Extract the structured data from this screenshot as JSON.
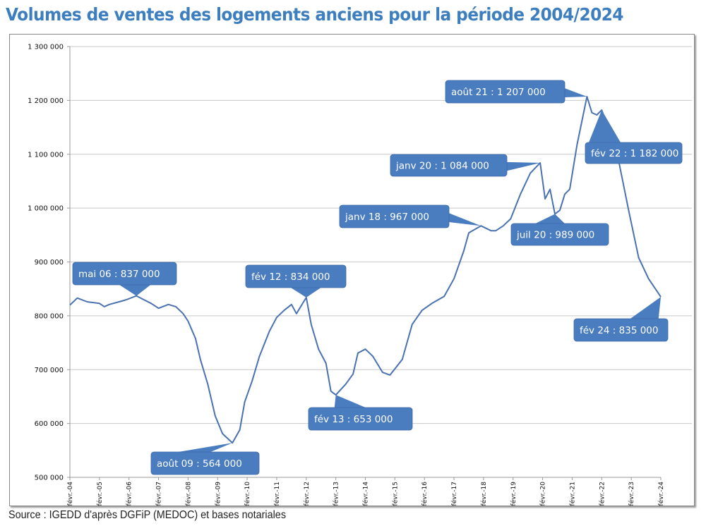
{
  "title": "Volumes de ventes des logements anciens pour la période 2004/2024",
  "source": "Source : IGEDD d'après DGFiP (MEDOC) et bases notariales",
  "colors": {
    "line": "#4a72b0",
    "callout": "#4a7cc0",
    "title": "#3d7ebf",
    "grid": "#c8c8c8"
  },
  "chart_data": {
    "type": "line",
    "title": "Volumes de ventes des logements anciens pour la période 2004/2024",
    "xlabel": "",
    "ylabel": "",
    "ylim": [
      500000,
      1300000
    ],
    "xlim": [
      "2004-02",
      "2024-02"
    ],
    "grid": true,
    "yticks": [
      "500 000",
      "600 000",
      "700 000",
      "800 000",
      "900 000",
      "1 000 000",
      "1 100 000",
      "1 200 000",
      "1 300 000"
    ],
    "xticks": [
      "févr.-04",
      "févr.-05",
      "févr.-06",
      "févr.-07",
      "févr.-08",
      "févr.-09",
      "févr.-10",
      "févr.-11",
      "févr.-12",
      "févr.-13",
      "févr.-14",
      "févr.-15",
      "févr.-16",
      "févr.-17",
      "févr.-18",
      "févr.-19",
      "févr.-20",
      "févr.-21",
      "févr.-22",
      "févr.-23",
      "févr.-24"
    ],
    "x": [
      "2004-02",
      "2004-05",
      "2004-09",
      "2005-02",
      "2005-04",
      "2005-06",
      "2005-10",
      "2006-01",
      "2006-05",
      "2006-08",
      "2006-11",
      "2007-02",
      "2007-06",
      "2007-09",
      "2007-12",
      "2008-02",
      "2008-05",
      "2008-07",
      "2008-10",
      "2009-01",
      "2009-04",
      "2009-08",
      "2009-11",
      "2010-01",
      "2010-04",
      "2010-07",
      "2010-11",
      "2011-02",
      "2011-05",
      "2011-08",
      "2011-10",
      "2012-02",
      "2012-04",
      "2012-07",
      "2012-10",
      "2012-12",
      "2013-02",
      "2013-06",
      "2013-09",
      "2013-11",
      "2014-02",
      "2014-05",
      "2014-09",
      "2014-12",
      "2015-05",
      "2015-09",
      "2016-01",
      "2016-05",
      "2016-10",
      "2017-02",
      "2017-06",
      "2017-08",
      "2018-01",
      "2018-05",
      "2018-07",
      "2018-10",
      "2019-01",
      "2019-05",
      "2019-09",
      "2020-01",
      "2020-03",
      "2020-05",
      "2020-07",
      "2020-09",
      "2020-11",
      "2021-01",
      "2021-04",
      "2021-08",
      "2021-10",
      "2021-12",
      "2022-02",
      "2022-05",
      "2022-09",
      "2023-01",
      "2023-05",
      "2023-09",
      "2024-02"
    ],
    "series": [
      {
        "values": [
          820000,
          833000,
          826000,
          823000,
          817000,
          821000,
          826000,
          830000,
          837000,
          830000,
          823000,
          814000,
          821000,
          817000,
          804000,
          790000,
          758000,
          719000,
          673000,
          614000,
          581000,
          564000,
          588000,
          640000,
          679000,
          725000,
          771000,
          797000,
          810000,
          821000,
          804000,
          834000,
          784000,
          738000,
          712000,
          660000,
          653000,
          673000,
          692000,
          731000,
          738000,
          725000,
          695000,
          690000,
          719000,
          784000,
          810000,
          823000,
          836000,
          869000,
          921000,
          954000,
          967000,
          958000,
          958000,
          967000,
          980000,
          1026000,
          1065000,
          1084000,
          1017000,
          1035000,
          989000,
          996000,
          1026000,
          1035000,
          1118000,
          1207000,
          1177000,
          1173000,
          1182000,
          1144000,
          1085000,
          994000,
          908000,
          869000,
          835000
        ]
      }
    ],
    "annotations": [
      {
        "label": "mai 06 : 837 000",
        "x": "2006-05",
        "y": 837000
      },
      {
        "label": "août 09 : 564 000",
        "x": "2009-08",
        "y": 564000
      },
      {
        "label": "fév 12 : 834 000",
        "x": "2012-02",
        "y": 834000
      },
      {
        "label": "fév 13 : 653 000",
        "x": "2013-02",
        "y": 653000
      },
      {
        "label": "janv  18 : 967 000",
        "x": "2018-01",
        "y": 967000
      },
      {
        "label": "janv 20 : 1 084 000",
        "x": "2020-01",
        "y": 1084000
      },
      {
        "label": "juil 20 : 989 000",
        "x": "2020-07",
        "y": 989000
      },
      {
        "label": "août 21 : 1 207 000",
        "x": "2021-08",
        "y": 1207000
      },
      {
        "label": "fév 22 : 1 182 000",
        "x": "2022-02",
        "y": 1182000
      },
      {
        "label": "fév 24 : 835 000",
        "x": "2024-02",
        "y": 835000
      }
    ]
  }
}
